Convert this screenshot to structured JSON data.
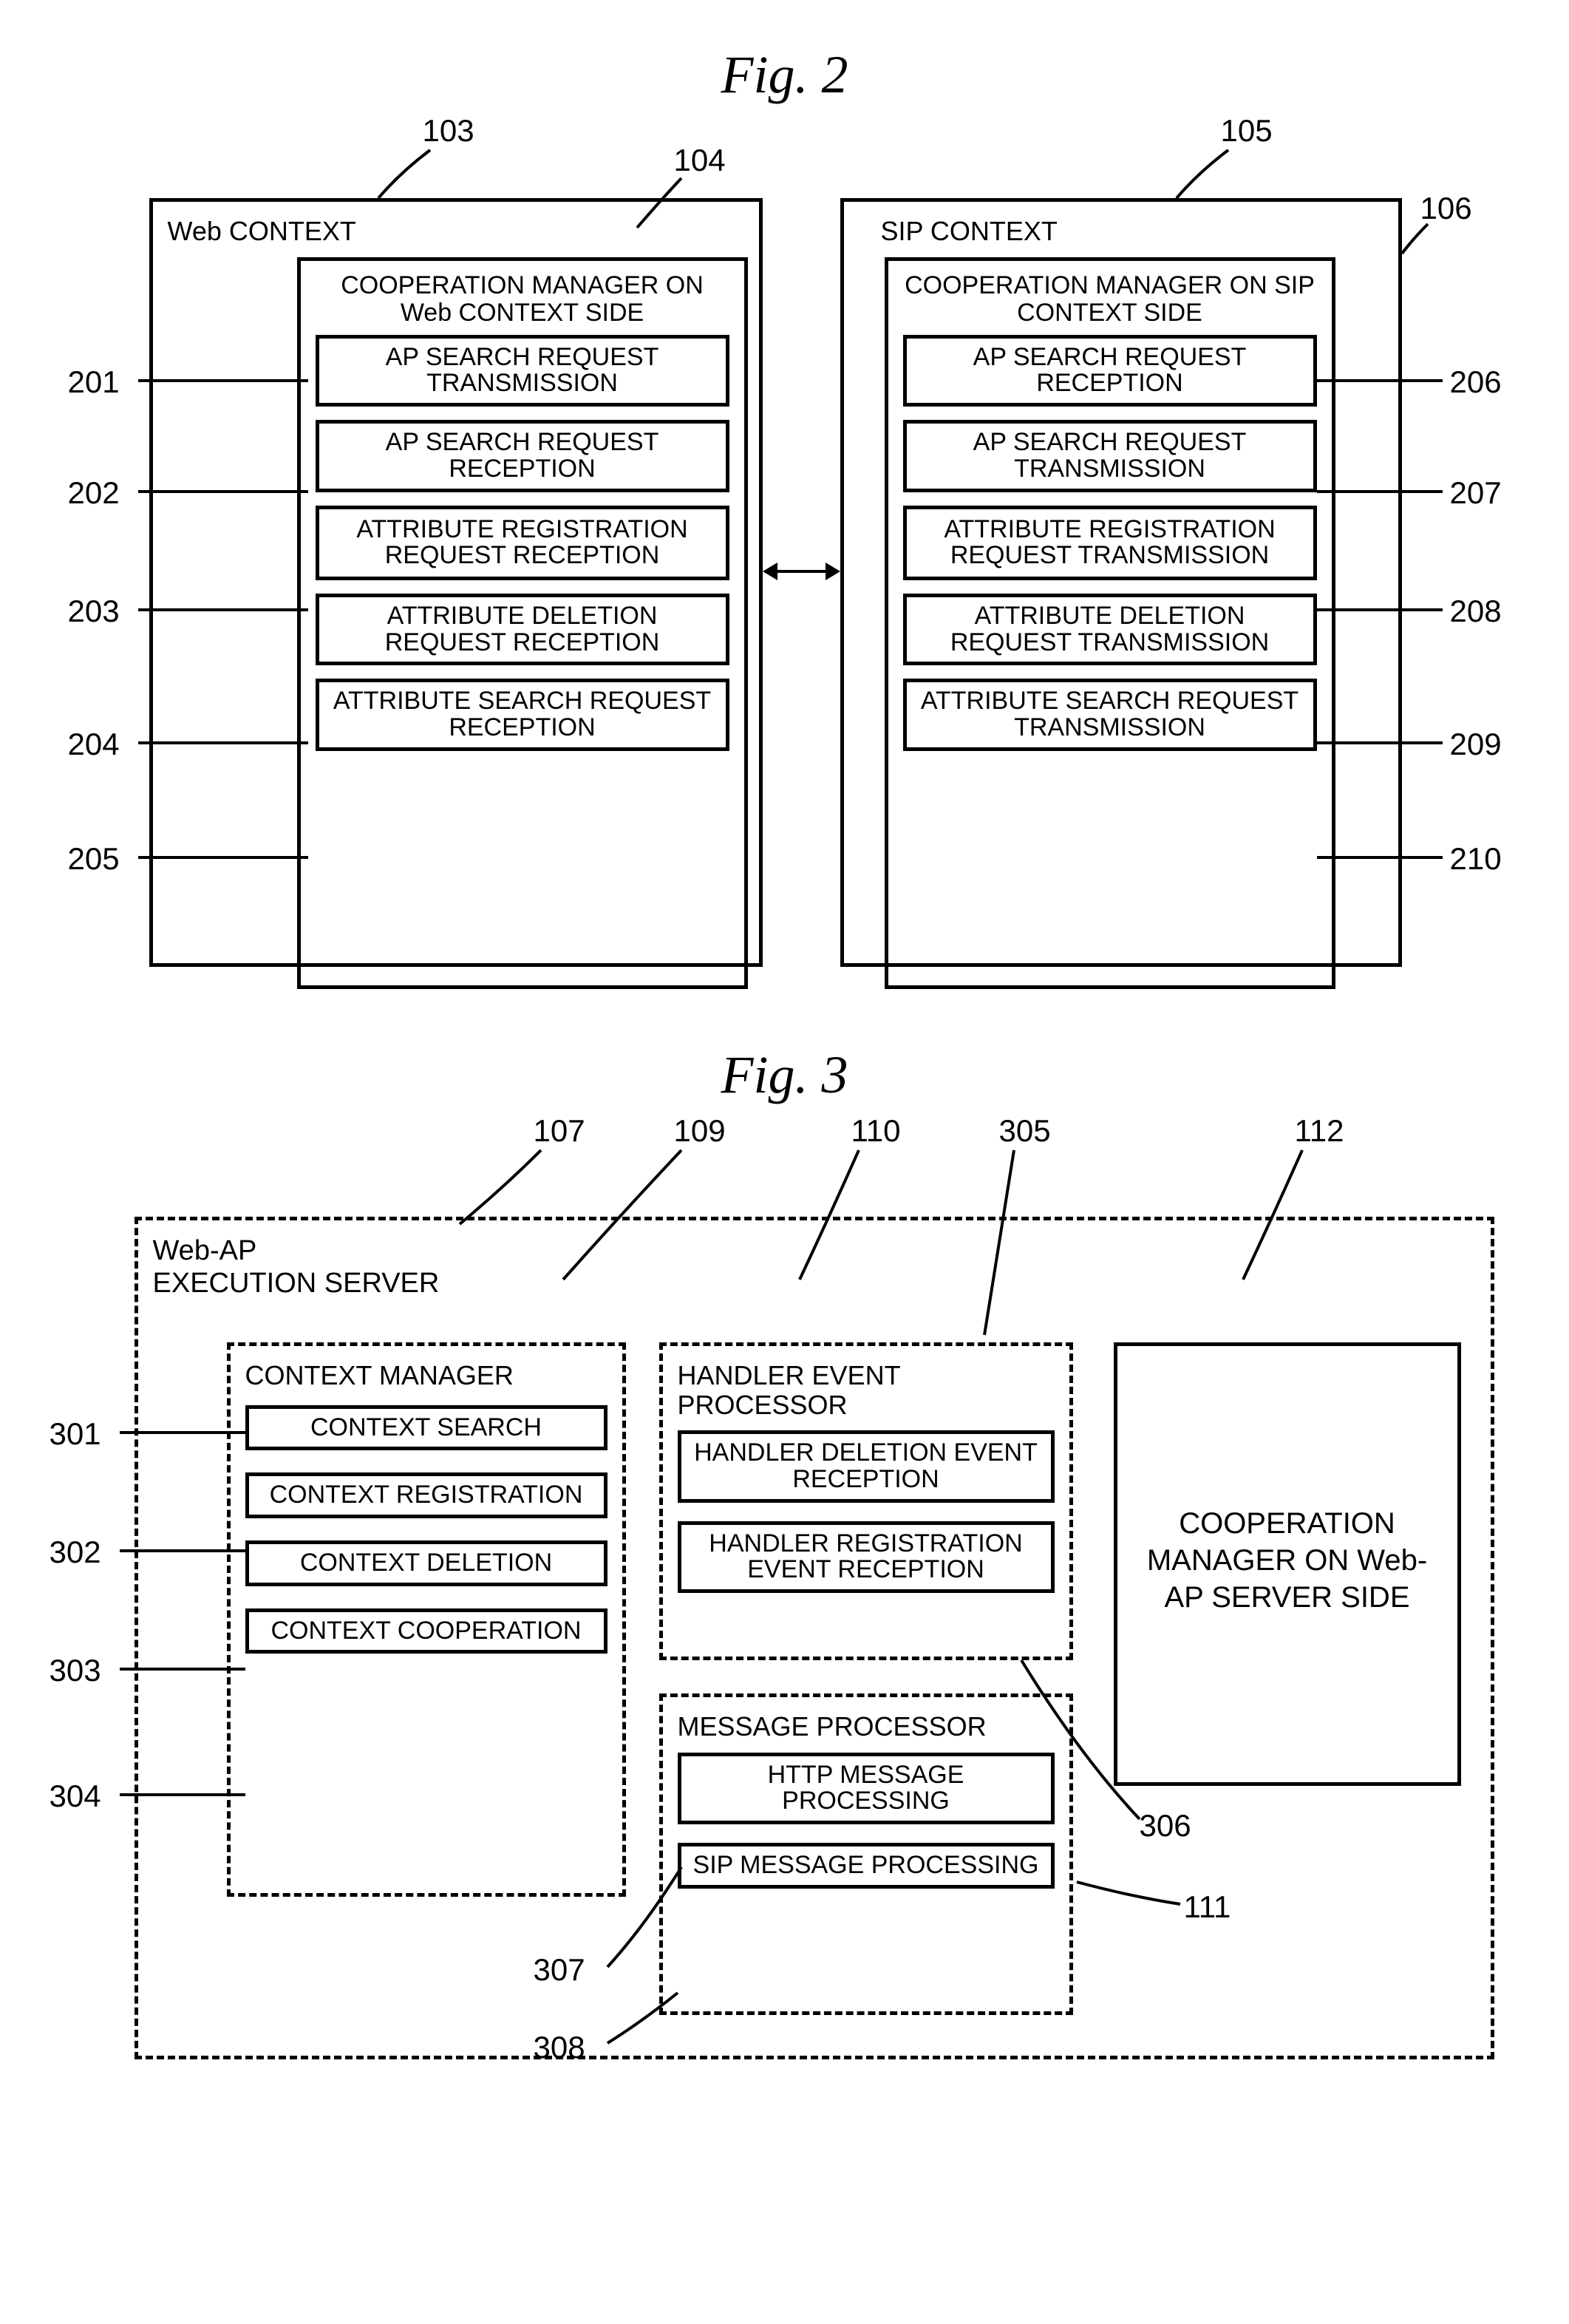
{
  "fig2": {
    "title": "Fig. 2",
    "refs": {
      "r103": "103",
      "r104": "104",
      "r105": "105",
      "r106": "106",
      "r201": "201",
      "r202": "202",
      "r203": "203",
      "r204": "204",
      "r205": "205",
      "r206": "206",
      "r207": "207",
      "r208": "208",
      "r209": "209",
      "r210": "210"
    },
    "web": {
      "outer_title": "Web CONTEXT",
      "mgr_title": "COOPERATION MANAGER ON Web CONTEXT SIDE",
      "items": [
        "AP SEARCH REQUEST TRANSMISSION",
        "AP SEARCH REQUEST RECEPTION",
        "ATTRIBUTE REGISTRATION REQUEST RECEPTION",
        "ATTRIBUTE DELETION REQUEST RECEPTION",
        "ATTRIBUTE SEARCH REQUEST RECEPTION"
      ]
    },
    "sip": {
      "outer_title": "SIP CONTEXT",
      "mgr_title": "COOPERATION MANAGER ON SIP CONTEXT SIDE",
      "items": [
        "AP SEARCH REQUEST RECEPTION",
        "AP SEARCH REQUEST TRANSMISSION",
        "ATTRIBUTE REGISTRATION REQUEST TRANSMISSION",
        "ATTRIBUTE DELETION REQUEST TRANSMISSION",
        "ATTRIBUTE SEARCH REQUEST TRANSMISSION"
      ]
    }
  },
  "fig3": {
    "title": "Fig. 3",
    "refs": {
      "r107": "107",
      "r109": "109",
      "r110": "110",
      "r111": "111",
      "r112": "112",
      "r301": "301",
      "r302": "302",
      "r303": "303",
      "r304": "304",
      "r305": "305",
      "r306": "306",
      "r307": "307",
      "r308": "308"
    },
    "server_title": "Web-AP EXECUTION SERVER",
    "ctx_mgr": {
      "title": "CONTEXT MANAGER",
      "items": [
        "CONTEXT SEARCH",
        "CONTEXT REGISTRATION",
        "CONTEXT DELETION",
        "CONTEXT COOPERATION"
      ]
    },
    "handler": {
      "title": "HANDLER EVENT PROCESSOR",
      "items": [
        "HANDLER DELETION EVENT RECEPTION",
        "HANDLER REGISTRATION EVENT RECEPTION"
      ]
    },
    "msg": {
      "title": "MESSAGE PROCESSOR",
      "items": [
        "HTTP MESSAGE PROCESSING",
        "SIP MESSAGE PROCESSING"
      ]
    },
    "coop": {
      "title": "COOPERATION MANAGER ON Web-AP SERVER SIDE"
    }
  }
}
